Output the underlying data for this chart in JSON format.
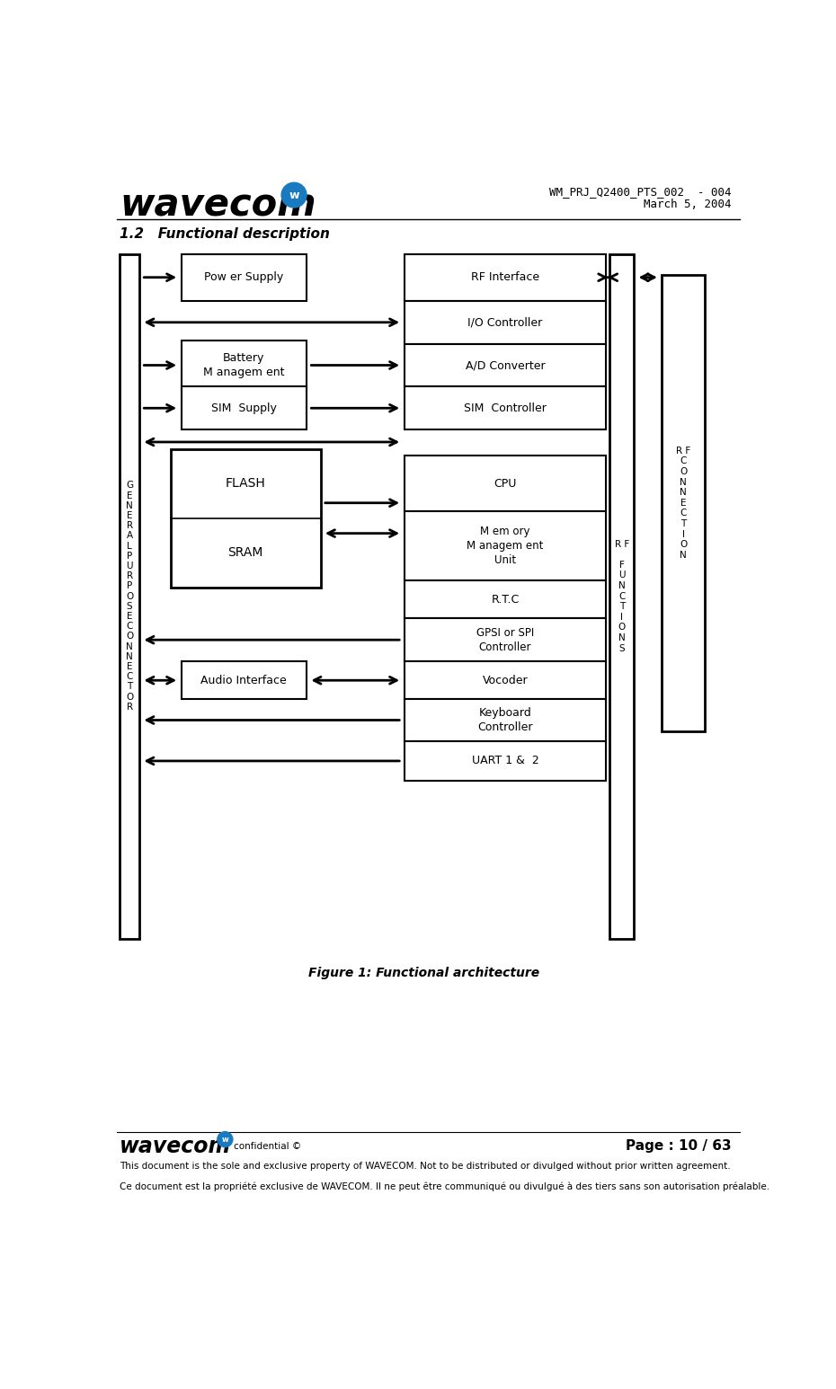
{
  "title_doc": "WM_PRJ_Q2400_PTS_002  - 004",
  "date_doc": "March 5, 2004",
  "section_title": "1.2   Functional description",
  "fig_caption": "Figure 1: Functional architecture",
  "page_info": "Page : 10 / 63",
  "footer_line1": "This document is the sole and exclusive property of WAVECOM. Not to be distributed or divulged without prior written agreement.",
  "footer_line2": "Ce document est la propriété exclusive de WAVECOM. Il ne peut être communiqué ou divulgué à des tiers sans son autorisation préalable.",
  "cell_labels": [
    "RF Interface",
    "I/O Controller",
    "A/D Converter",
    "SIM  Controller",
    "CPU",
    "M em ory\nM anagem ent\nUnit",
    "R.T.C",
    "GPSI or SPI\nController",
    "Vocoder",
    "Keyboard\nController",
    "UART 1 &  2"
  ],
  "bg_color": "#ffffff"
}
